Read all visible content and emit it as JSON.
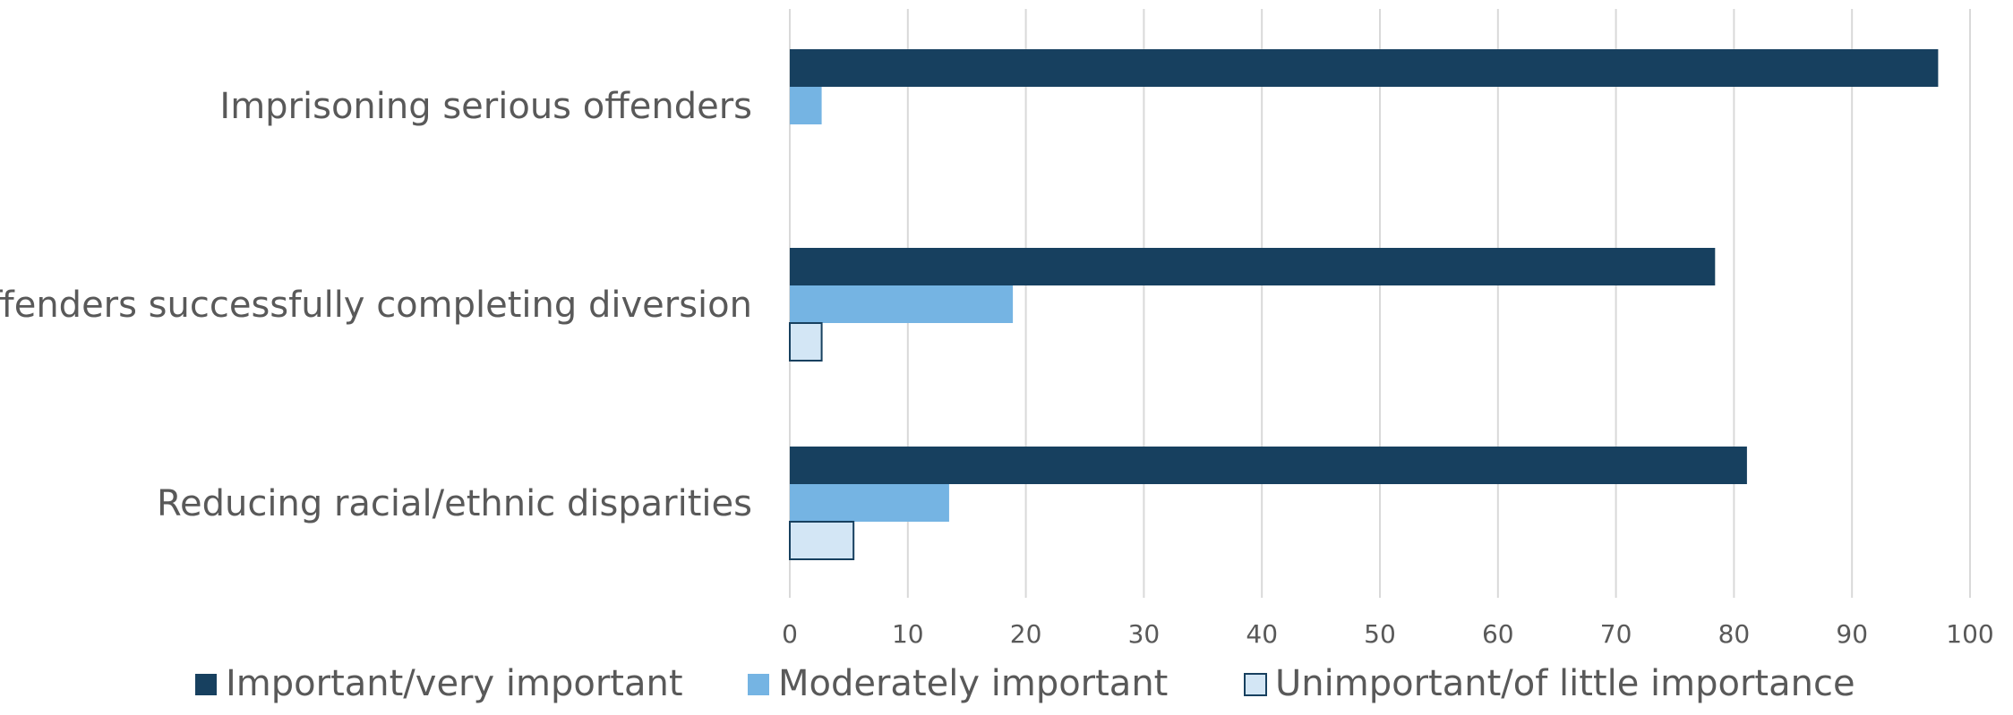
{
  "chart_data": {
    "type": "bar",
    "orientation": "horizontal",
    "categories": [
      "Imprisoning serious offenders",
      "Offenders successfully completing diversion",
      "Reducing racial/ethnic disparities"
    ],
    "series": [
      {
        "name": "Important/very important",
        "color": "#17405f",
        "values": [
          97.3,
          78.4,
          81.1
        ]
      },
      {
        "name": "Moderately important",
        "color": "#75b4e3",
        "values": [
          2.7,
          18.9,
          13.5
        ]
      },
      {
        "name": "Unimportant/of little importance",
        "color": "#d3e6f5",
        "outline": "#17405f",
        "values": [
          0,
          2.7,
          5.4
        ]
      }
    ],
    "xlim": [
      0,
      100
    ],
    "xticks": [
      "0",
      "10",
      "20",
      "30",
      "40",
      "50",
      "60",
      "70",
      "80",
      "90",
      "100"
    ],
    "grid": true,
    "legend_position": "bottom"
  }
}
